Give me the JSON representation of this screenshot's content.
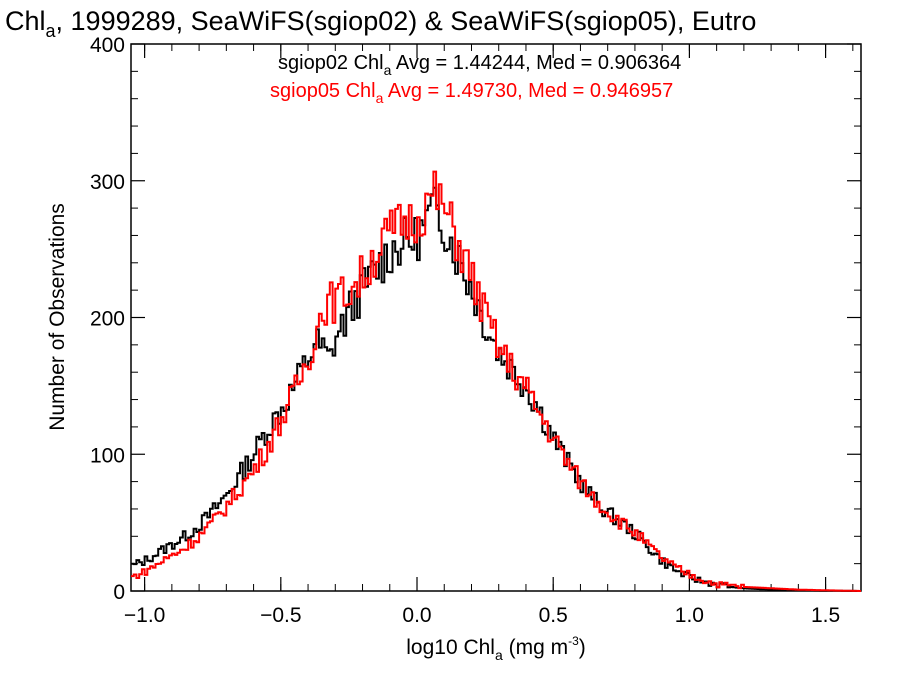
{
  "chart_data": {
    "type": "line",
    "title": {
      "prefix": "Chl",
      "sub": "a",
      "rest": ", 1999289, SeaWiFS(sgiop02) & SeaWiFS(sgiop05), Eutro"
    },
    "xlabel": {
      "prefix": "log10 Chl",
      "sub": "a",
      "mid": " (mg m",
      "sup": "-3",
      "end": ")"
    },
    "ylabel": "Number of Observations",
    "xlim": [
      -1.05,
      1.63
    ],
    "ylim": [
      0,
      400
    ],
    "x_ticks": [
      -1.0,
      -0.5,
      0.0,
      0.5,
      1.0,
      1.5
    ],
    "x_tick_labels": [
      "−1.0",
      "−0.5",
      "0.0",
      "0.5",
      "1.0",
      "1.5"
    ],
    "y_ticks": [
      0,
      100,
      200,
      300,
      400
    ],
    "y_tick_labels": [
      "0",
      "100",
      "200",
      "300",
      "400"
    ],
    "step": "histogram",
    "series": [
      {
        "legend": {
          "prefix": "sgiop02 Chl",
          "sub": "a",
          "rest": " Avg = 1.44244, Med = 0.906364"
        },
        "color": "#000000",
        "points": [
          [
            -1.05,
            18
          ],
          [
            -1.0,
            22
          ],
          [
            -0.95,
            28
          ],
          [
            -0.9,
            34
          ],
          [
            -0.85,
            40
          ],
          [
            -0.8,
            48
          ],
          [
            -0.75,
            58
          ],
          [
            -0.7,
            70
          ],
          [
            -0.65,
            85
          ],
          [
            -0.6,
            100
          ],
          [
            -0.55,
            118
          ],
          [
            -0.5,
            132
          ],
          [
            -0.45,
            150
          ],
          [
            -0.4,
            170
          ],
          [
            -0.37,
            182
          ],
          [
            -0.34,
            175
          ],
          [
            -0.32,
            168
          ],
          [
            -0.3,
            185
          ],
          [
            -0.27,
            195
          ],
          [
            -0.24,
            208
          ],
          [
            -0.2,
            220
          ],
          [
            -0.15,
            235
          ],
          [
            -0.1,
            248
          ],
          [
            -0.05,
            255
          ],
          [
            0.0,
            258
          ],
          [
            0.03,
            268
          ],
          [
            0.06,
            280
          ],
          [
            0.1,
            268
          ],
          [
            0.15,
            245
          ],
          [
            0.2,
            222
          ],
          [
            0.25,
            196
          ],
          [
            0.3,
            175
          ],
          [
            0.35,
            162
          ],
          [
            0.4,
            150
          ],
          [
            0.45,
            132
          ],
          [
            0.5,
            112
          ],
          [
            0.55,
            95
          ],
          [
            0.6,
            80
          ],
          [
            0.65,
            67
          ],
          [
            0.7,
            57
          ],
          [
            0.75,
            50
          ],
          [
            0.8,
            42
          ],
          [
            0.85,
            32
          ],
          [
            0.9,
            22
          ],
          [
            0.95,
            15
          ],
          [
            1.0,
            10
          ],
          [
            1.05,
            7
          ],
          [
            1.1,
            5
          ],
          [
            1.15,
            3
          ],
          [
            1.2,
            2
          ],
          [
            1.3,
            1
          ],
          [
            1.4,
            0.5
          ],
          [
            1.5,
            0.2
          ],
          [
            1.63,
            0
          ]
        ]
      },
      {
        "legend": {
          "prefix": "sgiop05 Chl",
          "sub": "a",
          "rest": " Avg = 1.49730, Med = 0.946957"
        },
        "color": "#ff0000",
        "points": [
          [
            -1.05,
            10
          ],
          [
            -1.0,
            14
          ],
          [
            -0.95,
            20
          ],
          [
            -0.9,
            26
          ],
          [
            -0.85,
            32
          ],
          [
            -0.8,
            40
          ],
          [
            -0.75,
            50
          ],
          [
            -0.7,
            62
          ],
          [
            -0.65,
            75
          ],
          [
            -0.6,
            88
          ],
          [
            -0.55,
            105
          ],
          [
            -0.5,
            125
          ],
          [
            -0.45,
            145
          ],
          [
            -0.4,
            170
          ],
          [
            -0.37,
            190
          ],
          [
            -0.34,
            210
          ],
          [
            -0.3,
            212
          ],
          [
            -0.25,
            220
          ],
          [
            -0.2,
            230
          ],
          [
            -0.15,
            248
          ],
          [
            -0.1,
            262
          ],
          [
            -0.05,
            270
          ],
          [
            0.0,
            272
          ],
          [
            0.03,
            280
          ],
          [
            0.06,
            292
          ],
          [
            0.1,
            280
          ],
          [
            0.15,
            256
          ],
          [
            0.2,
            230
          ],
          [
            0.25,
            202
          ],
          [
            0.3,
            178
          ],
          [
            0.35,
            162
          ],
          [
            0.4,
            148
          ],
          [
            0.45,
            130
          ],
          [
            0.5,
            112
          ],
          [
            0.55,
            95
          ],
          [
            0.6,
            80
          ],
          [
            0.65,
            68
          ],
          [
            0.7,
            58
          ],
          [
            0.75,
            50
          ],
          [
            0.8,
            43
          ],
          [
            0.85,
            33
          ],
          [
            0.9,
            24
          ],
          [
            0.95,
            17
          ],
          [
            1.0,
            12
          ],
          [
            1.05,
            8
          ],
          [
            1.1,
            5
          ],
          [
            1.15,
            4
          ],
          [
            1.2,
            3
          ],
          [
            1.3,
            2
          ],
          [
            1.4,
            1
          ],
          [
            1.5,
            0.5
          ],
          [
            1.63,
            0
          ]
        ]
      }
    ]
  }
}
